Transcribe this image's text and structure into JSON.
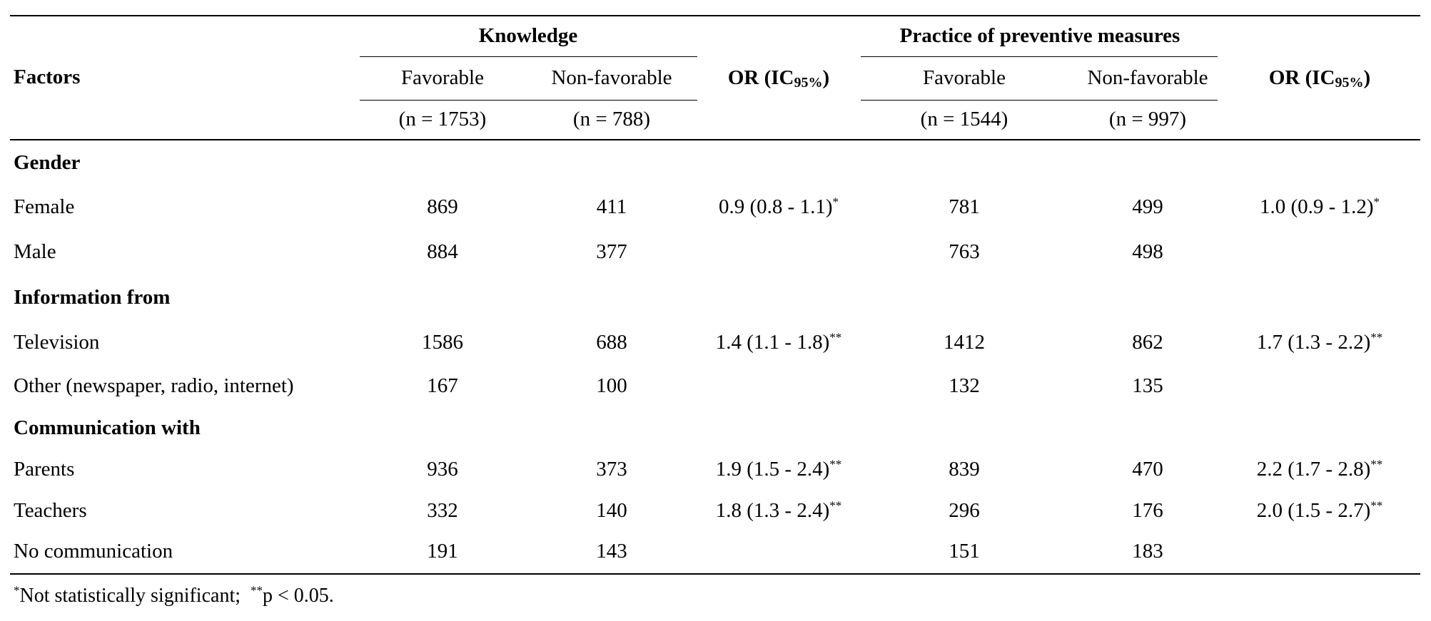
{
  "table": {
    "factors_header": "Factors",
    "knowledge_header": "Knowledge",
    "practice_header": "Practice of preventive measures",
    "or_label": "OR (IC",
    "or_sub": "95%",
    "or_close": ")",
    "favorable": "Favorable",
    "non_favorable": "Non-favorable",
    "k_fav_n": "(n = 1753)",
    "k_nonfav_n": "(n = 788)",
    "p_fav_n": "(n = 1544)",
    "p_nonfav_n": "(n = 997)",
    "groups": {
      "gender": "Gender",
      "information": "Information from",
      "communication": "Communication with"
    },
    "rows": [
      {
        "label": "Female",
        "k_fav": "869",
        "k_nonfav": "411",
        "k_or": "0.9 (0.8 - 1.1)",
        "k_or_mark": "*",
        "p_fav": "781",
        "p_nonfav": "499",
        "p_or": "1.0 (0.9 - 1.2)",
        "p_or_mark": "*"
      },
      {
        "label": "Male",
        "k_fav": "884",
        "k_nonfav": "377",
        "k_or": "",
        "k_or_mark": "",
        "p_fav": "763",
        "p_nonfav": "498",
        "p_or": "",
        "p_or_mark": ""
      },
      {
        "label": "Television",
        "k_fav": "1586",
        "k_nonfav": "688",
        "k_or": "1.4 (1.1 - 1.8)",
        "k_or_mark": "**",
        "p_fav": "1412",
        "p_nonfav": "862",
        "p_or": "1.7 (1.3 - 2.2)",
        "p_or_mark": "**"
      },
      {
        "label": "Other (newspaper, radio, internet)",
        "k_fav": "167",
        "k_nonfav": "100",
        "k_or": "",
        "k_or_mark": "",
        "p_fav": "132",
        "p_nonfav": "135",
        "p_or": "",
        "p_or_mark": ""
      },
      {
        "label": "Parents",
        "k_fav": "936",
        "k_nonfav": "373",
        "k_or": "1.9 (1.5 - 2.4)",
        "k_or_mark": "**",
        "p_fav": "839",
        "p_nonfav": "470",
        "p_or": "2.2 (1.7 - 2.8)",
        "p_or_mark": "**"
      },
      {
        "label": "Teachers",
        "k_fav": "332",
        "k_nonfav": "140",
        "k_or": "1.8 (1.3 - 2.4)",
        "k_or_mark": "**",
        "p_fav": "296",
        "p_nonfav": "176",
        "p_or": "2.0 (1.5 - 2.7)",
        "p_or_mark": "**"
      },
      {
        "label": "No communication",
        "k_fav": "191",
        "k_nonfav": "143",
        "k_or": "",
        "k_or_mark": "",
        "p_fav": "151",
        "p_nonfav": "183",
        "p_or": "",
        "p_or_mark": ""
      }
    ]
  },
  "footnote": {
    "mark1": "*",
    "text1": "Not statistically significant;",
    "mark2": "**",
    "text2": "p < 0.05."
  }
}
